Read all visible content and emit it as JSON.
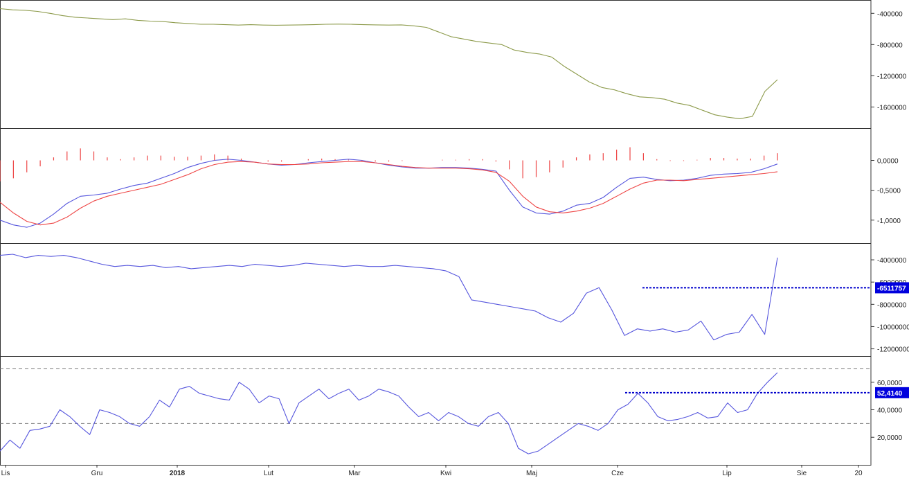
{
  "colors": {
    "obv": "#8c9a4a",
    "macd": "#5555dd",
    "signal": "#ee4444",
    "histogram": "#ee4444",
    "blue_line": "#5555dd",
    "rsi": "#5555dd",
    "level_line": "#0000cc",
    "badge": "#0000dd",
    "dashed": "#777777",
    "border": "#333333"
  },
  "x_axis": {
    "labels": [
      {
        "text": "Lis",
        "bold": false
      },
      {
        "text": "Gru",
        "bold": false
      },
      {
        "text": "2018",
        "bold": true
      },
      {
        "text": "Lut",
        "bold": false
      },
      {
        "text": "Mar",
        "bold": false
      },
      {
        "text": "Kwi",
        "bold": false
      },
      {
        "text": "Maj",
        "bold": false
      },
      {
        "text": "Cze",
        "bold": false
      },
      {
        "text": "Lip",
        "bold": false
      },
      {
        "text": "Sie",
        "bold": false
      },
      {
        "text": "20",
        "bold": false
      }
    ]
  },
  "chart_data": [
    {
      "type": "line",
      "name": "panel-1",
      "ylim": [
        -1800000,
        -300000
      ],
      "ticks": [
        "-400000",
        "-800000",
        "-1200000",
        "-1600000"
      ],
      "tick_values": [
        -400000,
        -800000,
        -1200000,
        -1600000
      ],
      "series": [
        {
          "values": [
            -340000,
            -355000,
            -360000,
            -375000,
            -400000,
            -430000,
            -450000,
            -460000,
            -470000,
            -480000,
            -470000,
            -490000,
            -500000,
            -505000,
            -520000,
            -530000,
            -540000,
            -540000,
            -545000,
            -550000,
            -545000,
            -550000,
            -552000,
            -550000,
            -548000,
            -545000,
            -540000,
            -538000,
            -540000,
            -545000,
            -548000,
            -550000,
            -548000,
            -560000,
            -580000,
            -640000,
            -700000,
            -730000,
            -760000,
            -780000,
            -800000,
            -870000,
            -900000,
            -920000,
            -960000,
            -1080000,
            -1180000,
            -1280000,
            -1350000,
            -1380000,
            -1430000,
            -1470000,
            -1480000,
            -1500000,
            -1550000,
            -1580000,
            -1640000,
            -1700000,
            -1730000,
            -1750000,
            -1720000,
            -1400000,
            -1250000
          ]
        }
      ]
    },
    {
      "type": "line",
      "name": "panel-2",
      "ylim": [
        -1.2,
        0.4
      ],
      "ticks": [
        "0,0000",
        "-0,5000",
        "-1,0000"
      ],
      "tick_values": [
        0,
        -0.5,
        -1.0
      ],
      "series": [
        {
          "values": [
            -1.0,
            -1.08,
            -1.12,
            -1.05,
            -0.9,
            -0.72,
            -0.6,
            -0.58,
            -0.55,
            -0.48,
            -0.42,
            -0.38,
            -0.3,
            -0.22,
            -0.12,
            -0.05,
            0.0,
            0.02,
            0.0,
            -0.03,
            -0.06,
            -0.08,
            -0.07,
            -0.04,
            -0.02,
            0.0,
            0.02,
            0.0,
            -0.04,
            -0.08,
            -0.11,
            -0.13,
            -0.13,
            -0.12,
            -0.12,
            -0.13,
            -0.15,
            -0.18,
            -0.5,
            -0.78,
            -0.88,
            -0.9,
            -0.85,
            -0.75,
            -0.72,
            -0.62,
            -0.45,
            -0.3,
            -0.28,
            -0.32,
            -0.34,
            -0.33,
            -0.3,
            -0.25,
            -0.23,
            -0.22,
            -0.2,
            -0.14,
            -0.06
          ]
        },
        {
          "values": [
            -0.7,
            -0.88,
            -1.02,
            -1.08,
            -1.05,
            -0.95,
            -0.8,
            -0.68,
            -0.6,
            -0.55,
            -0.5,
            -0.45,
            -0.4,
            -0.32,
            -0.24,
            -0.14,
            -0.07,
            -0.03,
            -0.02,
            -0.03,
            -0.06,
            -0.07,
            -0.07,
            -0.06,
            -0.04,
            -0.03,
            -0.02,
            -0.02,
            -0.04,
            -0.07,
            -0.1,
            -0.12,
            -0.13,
            -0.13,
            -0.13,
            -0.14,
            -0.16,
            -0.2,
            -0.35,
            -0.6,
            -0.78,
            -0.86,
            -0.88,
            -0.85,
            -0.8,
            -0.72,
            -0.6,
            -0.48,
            -0.38,
            -0.33,
            -0.33,
            -0.34,
            -0.32,
            -0.3,
            -0.28,
            -0.26,
            -0.24,
            -0.22,
            -0.19
          ]
        },
        {
          "type": "bar",
          "values": [
            -0.35,
            -0.3,
            -0.2,
            -0.1,
            0.05,
            0.15,
            0.2,
            0.15,
            0.05,
            0.02,
            0.05,
            0.08,
            0.08,
            0.06,
            0.06,
            0.08,
            0.1,
            0.08,
            0.03,
            0.0,
            -0.02,
            -0.02,
            0.0,
            0.02,
            0.03,
            0.02,
            0.01,
            -0.01,
            -0.02,
            -0.02,
            -0.01,
            0.0,
            0.0,
            0.01,
            0.01,
            0.02,
            0.02,
            -0.02,
            -0.15,
            -0.3,
            -0.28,
            -0.2,
            -0.12,
            0.05,
            0.1,
            0.12,
            0.18,
            0.22,
            0.12,
            0.02,
            -0.01,
            -0.01,
            0.01,
            0.04,
            0.04,
            0.03,
            0.03,
            0.08,
            0.12
          ]
        }
      ]
    },
    {
      "type": "line",
      "name": "panel-3",
      "ylim": [
        -12400000,
        -3000000
      ],
      "ticks": [
        "-4000000",
        "-6000000",
        "-8000000",
        "-10000000",
        "-12000000"
      ],
      "tick_values": [
        -4000000,
        -6000000,
        -8000000,
        -10000000,
        -12000000
      ],
      "level": {
        "value": -6511757,
        "label": "-6511757"
      },
      "series": [
        {
          "values": [
            -3600000,
            -3500000,
            -3800000,
            -3600000,
            -3700000,
            -3600000,
            -3800000,
            -4100000,
            -4400000,
            -4600000,
            -4500000,
            -4600000,
            -4500000,
            -4700000,
            -4600000,
            -4800000,
            -4700000,
            -4600000,
            -4500000,
            -4600000,
            -4400000,
            -4500000,
            -4600000,
            -4500000,
            -4300000,
            -4400000,
            -4500000,
            -4600000,
            -4500000,
            -4600000,
            -4600000,
            -4500000,
            -4600000,
            -4700000,
            -4800000,
            -5000000,
            -5500000,
            -7600000,
            -7800000,
            -8000000,
            -8200000,
            -8400000,
            -8600000,
            -9200000,
            -9600000,
            -8800000,
            -7000000,
            -6500000,
            -8500000,
            -10800000,
            -10200000,
            -10400000,
            -10200000,
            -10500000,
            -10300000,
            -9500000,
            -11200000,
            -10700000,
            -10500000,
            -8900000,
            -10700000,
            -3800000
          ]
        }
      ]
    },
    {
      "type": "line",
      "name": "panel-4",
      "ylim": [
        4,
        76
      ],
      "ticks": [
        "60,0000",
        "40,0000",
        "20,0000"
      ],
      "tick_values": [
        60,
        40,
        20
      ],
      "guides": [
        70,
        30
      ],
      "level": {
        "value": 52.414,
        "label": "52,4140"
      },
      "series": [
        {
          "values": [
            10,
            18,
            12,
            25,
            26,
            28,
            40,
            35,
            28,
            22,
            40,
            38,
            35,
            30,
            28,
            35,
            47,
            42,
            55,
            57,
            52,
            50,
            48,
            47,
            60,
            55,
            45,
            50,
            48,
            30,
            45,
            50,
            55,
            48,
            52,
            55,
            47,
            50,
            55,
            53,
            50,
            42,
            35,
            38,
            32,
            38,
            35,
            30,
            28,
            35,
            38,
            30,
            12,
            8,
            10,
            15,
            20,
            25,
            30,
            28,
            25,
            30,
            40,
            44,
            52,
            45,
            35,
            32,
            33,
            35,
            38,
            34,
            35,
            45,
            38,
            40,
            52,
            60,
            67
          ]
        }
      ]
    }
  ]
}
